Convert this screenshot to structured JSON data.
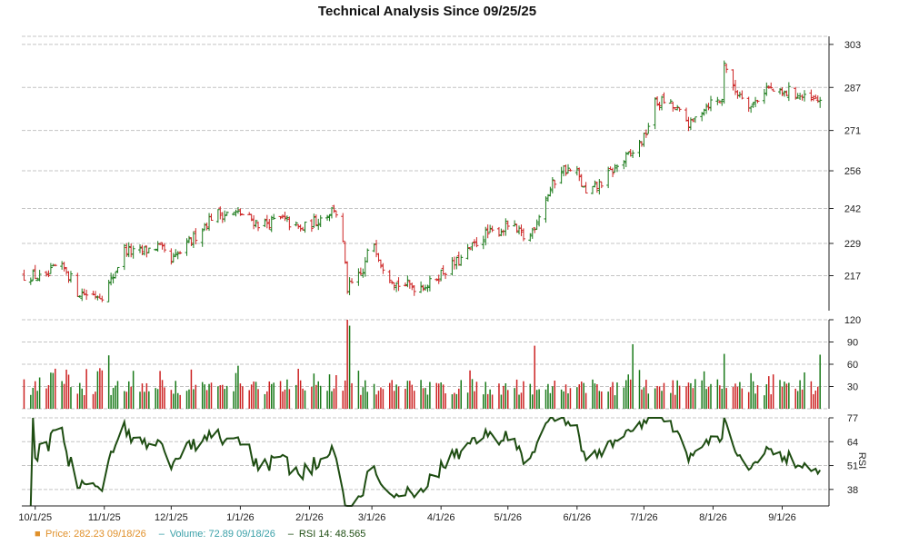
{
  "chart_data": {
    "type": "ohlc",
    "title": "Technical Analysis Since 09/25/25",
    "x_ticks": [
      "10/1/25",
      "11/1/25",
      "12/1/25",
      "1/1/26",
      "2/1/26",
      "3/1/26",
      "4/1/26",
      "5/1/26",
      "6/1/26",
      "7/1/26",
      "8/1/26",
      "9/1/26"
    ],
    "price_panel": {
      "y_ticks": [
        "303",
        "287",
        "271",
        "256",
        "242",
        "229",
        "217"
      ],
      "ylim": [
        204,
        306
      ],
      "grid": true,
      "up_color": "#1a7a1a",
      "down_color": "#cc2222",
      "price_anchors": [
        [
          "10/1/25",
          217
        ],
        [
          "10/5/25",
          215
        ],
        [
          "10/10/25",
          220
        ],
        [
          "10/15/25",
          219
        ],
        [
          "10/20/25",
          211
        ],
        [
          "10/25/25",
          210
        ],
        [
          "11/1/25",
          210
        ],
        [
          "11/5/25",
          217
        ],
        [
          "11/10/25",
          227
        ],
        [
          "11/15/25",
          225
        ],
        [
          "11/25/25",
          228
        ],
        [
          "12/1/25",
          222
        ],
        [
          "12/10/25",
          230
        ],
        [
          "12/20/25",
          240
        ],
        [
          "1/1/26",
          240
        ],
        [
          "1/10/26",
          236
        ],
        [
          "1/20/26",
          238
        ],
        [
          "1/28/26",
          234
        ],
        [
          "2/5/26",
          238
        ],
        [
          "2/12/26",
          242
        ],
        [
          "2/15/26",
          237
        ],
        [
          "2/18/26",
          212
        ],
        [
          "2/25/26",
          218
        ],
        [
          "3/1/26",
          232
        ],
        [
          "3/5/26",
          222
        ],
        [
          "3/12/26",
          214
        ],
        [
          "3/20/26",
          213
        ],
        [
          "3/27/26",
          214
        ],
        [
          "4/1/26",
          218
        ],
        [
          "4/10/26",
          223
        ],
        [
          "4/20/26",
          232
        ],
        [
          "4/28/26",
          234
        ],
        [
          "5/1/26",
          236
        ],
        [
          "5/10/26",
          230
        ],
        [
          "5/18/26",
          246
        ],
        [
          "5/25/26",
          257
        ],
        [
          "6/1/26",
          255
        ],
        [
          "6/5/26",
          247
        ],
        [
          "6/10/26",
          250
        ],
        [
          "6/18/26",
          257
        ],
        [
          "6/25/26",
          262
        ],
        [
          "7/1/26",
          268
        ],
        [
          "7/6/26",
          281
        ],
        [
          "7/10/26",
          282
        ],
        [
          "7/15/26",
          279
        ],
        [
          "7/22/26",
          273
        ],
        [
          "7/28/26",
          280
        ],
        [
          "8/1/26",
          282
        ],
        [
          "8/5/26",
          282
        ],
        [
          "8/6/26",
          297
        ],
        [
          "8/10/26",
          286
        ],
        [
          "8/15/26",
          284
        ],
        [
          "8/18/26",
          280
        ],
        [
          "8/25/26",
          287
        ],
        [
          "9/1/26",
          284
        ],
        [
          "9/5/26",
          286
        ],
        [
          "9/12/26",
          282
        ],
        [
          "9/18/26",
          282
        ]
      ]
    },
    "volume_panel": {
      "y_ticks": [
        "120",
        "90",
        "60",
        "30"
      ],
      "ylim": [
        0,
        120
      ],
      "grid": true
    },
    "rsi_panel": {
      "y_ticks": [
        "77",
        "64",
        "51",
        "38"
      ],
      "ylim": [
        29,
        77
      ],
      "ylabel": "RSI",
      "line_color": "#1e4d12",
      "grid": true
    },
    "legend": [
      {
        "label": "Price: 282.23",
        "date": "09/18/26",
        "color": "#e0902a",
        "marker": "■"
      },
      {
        "label": "Volume: 72.89",
        "date": "09/18/26",
        "color": "#3aa0a8",
        "marker": "‒"
      },
      {
        "label": "RSI 14: 48.565",
        "date": "",
        "color": "#1e4d12",
        "marker": "‒"
      }
    ],
    "last_values": {
      "price": 282.23,
      "volume": 72.89,
      "rsi": 48.565
    },
    "legend_position": "bottom-left"
  }
}
